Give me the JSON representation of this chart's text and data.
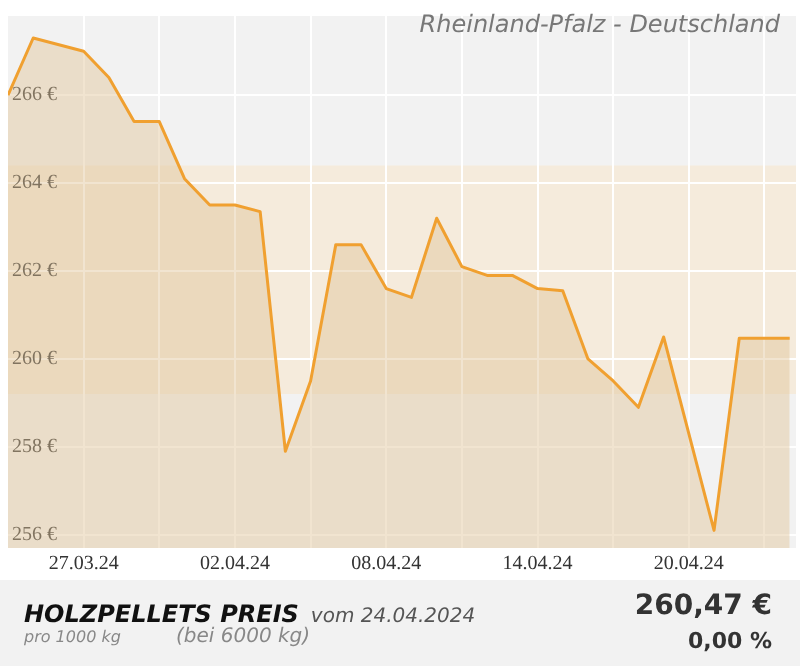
{
  "chart_data": {
    "type": "area",
    "title": "HOLZPELLETS PREIS",
    "subtitle": "Rheinland-Pfalz - Deutschland",
    "annotations": [
      "vom 24.04.2024",
      "pro 1000 kg",
      "(bei 6000 kg)",
      "260,47 €",
      "0,00 %"
    ],
    "x": [
      "2024-03-24",
      "2024-03-25",
      "2024-03-27",
      "2024-03-28",
      "2024-03-29",
      "2024-03-30",
      "2024-03-31",
      "2024-04-01",
      "2024-04-02",
      "2024-04-03",
      "2024-04-04",
      "2024-04-05",
      "2024-04-06",
      "2024-04-07",
      "2024-04-08",
      "2024-04-09",
      "2024-04-10",
      "2024-04-11",
      "2024-04-12",
      "2024-04-13",
      "2024-04-14",
      "2024-04-15",
      "2024-04-16",
      "2024-04-17",
      "2024-04-18",
      "2024-04-19",
      "2024-04-21",
      "2024-04-22",
      "2024-04-24"
    ],
    "series": [
      {
        "color": "#f0a030",
        "values": [
          266.0,
          267.3,
          267.0,
          266.4,
          265.4,
          265.4,
          264.1,
          263.5,
          263.5,
          263.35,
          257.9,
          259.5,
          262.6,
          262.6,
          261.6,
          261.4,
          263.2,
          262.1,
          261.9,
          261.9,
          261.6,
          261.55,
          260.0,
          259.5,
          258.9,
          260.5,
          256.1,
          260.47,
          260.47
        ]
      }
    ],
    "xlim": [
      "2024-03-24",
      "2024-04-24T06:00"
    ],
    "xticks": [
      {
        "value": "2024-03-27",
        "label": "27.03.24"
      },
      {
        "value": "2024-03-30",
        "label": null
      },
      {
        "value": "2024-04-02",
        "label": "02.04.24"
      },
      {
        "value": "2024-04-05",
        "label": null
      },
      {
        "value": "2024-04-08",
        "label": "08.04.24"
      },
      {
        "value": "2024-04-11",
        "label": null
      },
      {
        "value": "2024-04-14",
        "label": "14.04.24"
      },
      {
        "value": "2024-04-17",
        "label": null
      },
      {
        "value": "2024-04-20",
        "label": "20.04.24"
      },
      {
        "value": "2024-04-23",
        "label": null
      }
    ],
    "ylim": [
      255.7,
      267.8
    ],
    "yticks": [
      {
        "value": 256,
        "label": "256 €"
      },
      {
        "value": 258,
        "label": "258 €"
      },
      {
        "value": 260,
        "label": "260 €"
      },
      {
        "value": 262,
        "label": "262 €"
      },
      {
        "value": 264,
        "label": "264 €"
      },
      {
        "value": 266,
        "label": "266 €"
      }
    ],
    "bands": [
      {
        "axis": "y",
        "from": 259.2,
        "to": 264.4,
        "color": "#f5ebdc"
      }
    ],
    "grid": true,
    "legend": false,
    "marker": "none",
    "line_style": "solid"
  }
}
